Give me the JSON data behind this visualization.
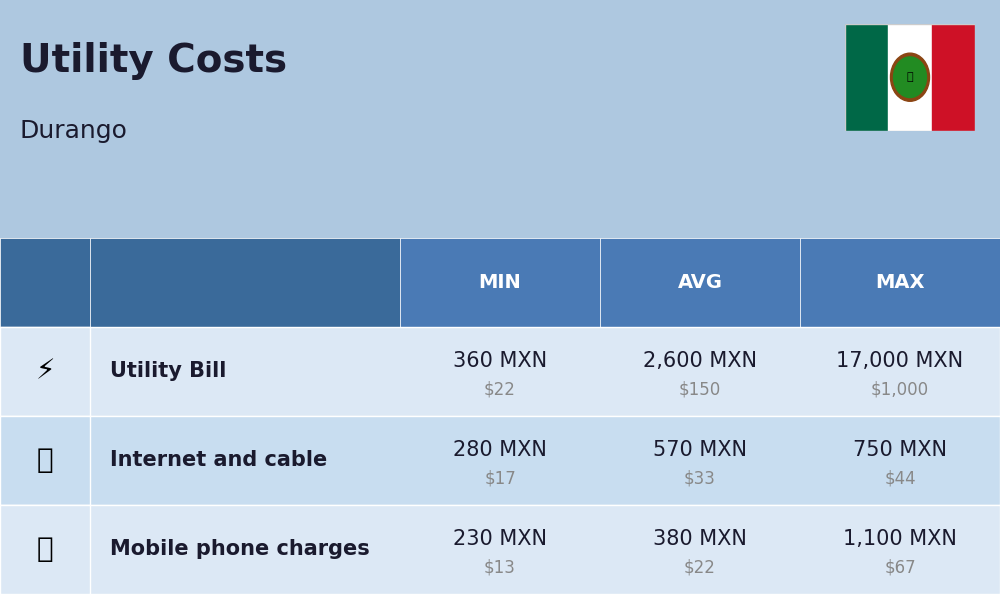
{
  "title": "Utility Costs",
  "subtitle": "Durango",
  "background_color": "#aec8e0",
  "header_color": "#4a7ab5",
  "header_text_color": "#ffffff",
  "row_colors": [
    "#dce8f5",
    "#c8ddf0"
  ],
  "cell_text_color": "#1a1a2e",
  "usd_text_color": "#888888",
  "col_headers": [
    "MIN",
    "AVG",
    "MAX"
  ],
  "rows": [
    {
      "label": "Utility Bill",
      "icon": "utility",
      "min_mxn": "360 MXN",
      "min_usd": "$22",
      "avg_mxn": "2,600 MXN",
      "avg_usd": "$150",
      "max_mxn": "17,000 MXN",
      "max_usd": "$1,000"
    },
    {
      "label": "Internet and cable",
      "icon": "internet",
      "min_mxn": "280 MXN",
      "min_usd": "$17",
      "avg_mxn": "570 MXN",
      "avg_usd": "$33",
      "max_mxn": "750 MXN",
      "max_usd": "$44"
    },
    {
      "label": "Mobile phone charges",
      "icon": "mobile",
      "min_mxn": "230 MXN",
      "min_usd": "$13",
      "avg_mxn": "380 MXN",
      "avg_usd": "$22",
      "max_mxn": "1,100 MXN",
      "max_usd": "$67"
    }
  ],
  "flag_colors": [
    "#006847",
    "#ffffff",
    "#ce1126"
  ],
  "title_fontsize": 28,
  "subtitle_fontsize": 18,
  "header_fontsize": 14,
  "cell_fontsize": 15,
  "cell_usd_fontsize": 12,
  "label_fontsize": 15
}
